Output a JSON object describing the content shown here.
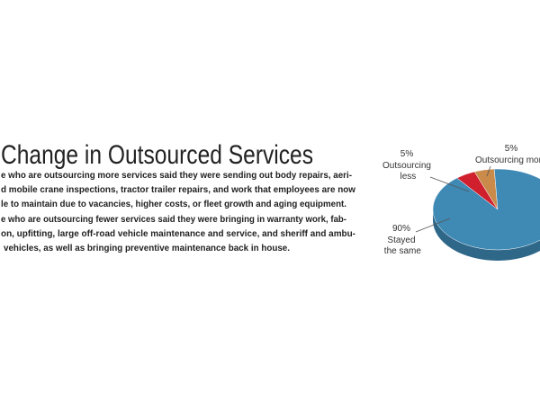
{
  "article": {
    "title": "Change in Outsourced Services",
    "lines": [
      "e who are outsourcing more services said they were sending out body repairs, aeri-",
      "d mobile crane inspections, tractor trailer repairs, and work that employees are now",
      "le to maintain due to vacancies, higher costs, or fleet growth and aging equipment.",
      "e who are outsourcing fewer services said they were bringing in warranty work, fab-",
      "on, upfitting, large off-road vehicle maintenance and service, and sheriff and ambu-",
      "vehicles, as well as bringing preventive maintenance back in house."
    ]
  },
  "chart_data": {
    "type": "pie",
    "categories": [
      "Outsourcing less",
      "Outsourcing more",
      "Stayed the same"
    ],
    "values": [
      5,
      5,
      90
    ],
    "value_labels": [
      "5%",
      "5%",
      "90%"
    ],
    "colors": [
      "#d0202e",
      "#c98a4a",
      "#3f89b5"
    ]
  }
}
